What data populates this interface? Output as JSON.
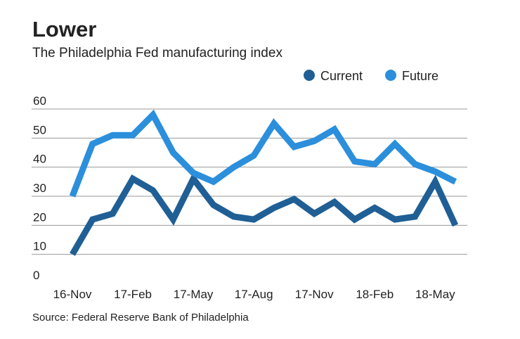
{
  "chart_data": {
    "type": "line",
    "title": "Lower",
    "subtitle": "The Philadelphia Fed manufacturing index",
    "source": "Source: Federal Reserve Bank of Philadelphia",
    "categories": [
      "16-Nov",
      null,
      null,
      "17-Feb",
      null,
      null,
      "17-May",
      null,
      null,
      "17-Aug",
      null,
      null,
      "17-Nov",
      null,
      null,
      "18-Feb",
      null,
      null,
      "18-May",
      null
    ],
    "series": [
      {
        "name": "Current",
        "color": "#1f5f95",
        "values": [
          10,
          22,
          24,
          36,
          32,
          22,
          36,
          27,
          23,
          22,
          26,
          29,
          24,
          28,
          22,
          26,
          22,
          23,
          35,
          20
        ]
      },
      {
        "name": "Future",
        "color": "#2b8fdc",
        "values": [
          30,
          48,
          51,
          51,
          58,
          45,
          38,
          35,
          40,
          44,
          55,
          47,
          49,
          53,
          42,
          41,
          48,
          41,
          38.5,
          35
        ]
      }
    ],
    "ylim": [
      0,
      60
    ],
    "yticks": [
      0,
      10,
      20,
      30,
      40,
      50,
      60
    ],
    "grid": true,
    "legend": "top-right"
  }
}
